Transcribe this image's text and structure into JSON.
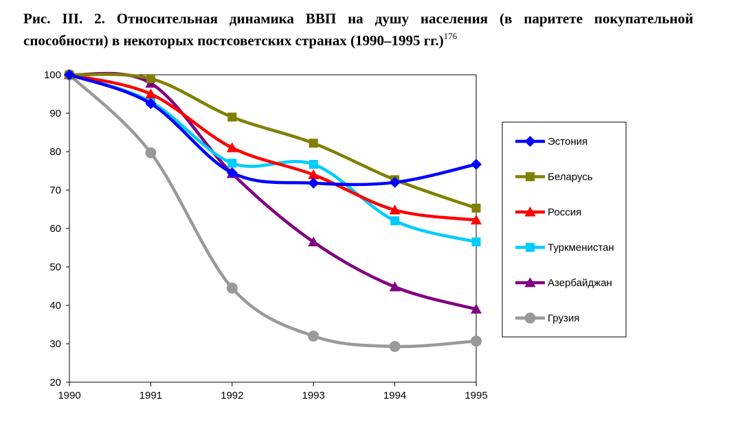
{
  "caption": {
    "text": "Рис. III. 2. Относительная динамика ВВП на душу населения (в паритете покупательной способности) в некоторых постсоветских странах (1990–1995 гг.)",
    "footnote": "176"
  },
  "chart_data": {
    "type": "line",
    "x": [
      1990,
      1991,
      1992,
      1993,
      1994,
      1995
    ],
    "xlim": [
      1990,
      1995
    ],
    "ylim": [
      20,
      100
    ],
    "yticks": [
      20,
      30,
      40,
      50,
      60,
      70,
      80,
      90,
      100
    ],
    "xticks": [
      1990,
      1991,
      1992,
      1993,
      1994,
      1995
    ],
    "grid": false,
    "legend": "right",
    "series": [
      {
        "name": "Эстония",
        "color": "#0000ff",
        "marker": "diamond",
        "values": [
          100,
          92.5,
          74.5,
          71.8,
          72.0,
          76.7
        ]
      },
      {
        "name": "Беларусь",
        "color": "#808000",
        "marker": "square",
        "values": [
          100,
          99.0,
          89.0,
          82.2,
          72.7,
          65.3
        ]
      },
      {
        "name": "Россия",
        "color": "#ff0000",
        "marker": "triangle",
        "values": [
          100,
          95.0,
          81.0,
          74.0,
          64.8,
          62.2
        ]
      },
      {
        "name": "Туркменистан",
        "color": "#00ccff",
        "marker": "square",
        "values": [
          100,
          93.0,
          77.0,
          76.7,
          62.0,
          56.5
        ]
      },
      {
        "name": "Азербайджан",
        "color": "#800080",
        "marker": "triangle",
        "values": [
          100,
          97.8,
          74.3,
          56.5,
          44.8,
          39.0
        ]
      },
      {
        "name": "Грузия",
        "color": "#999999",
        "marker": "circle",
        "values": [
          100,
          79.7,
          44.5,
          32.0,
          29.3,
          30.7
        ]
      }
    ]
  }
}
